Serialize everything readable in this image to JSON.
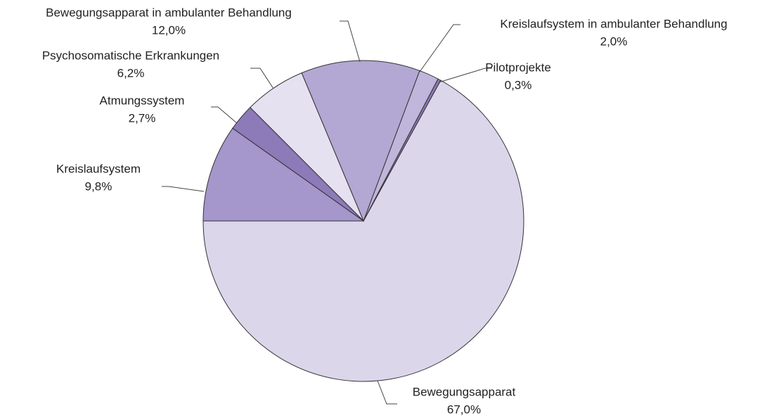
{
  "chart_data": {
    "type": "pie",
    "categories": [
      "Bewegungsapparat",
      "Pilotprojekte",
      "Kreislaufsystem in ambulanter Behandlung",
      "Bewegungsapparat in ambulanter Behandlung",
      "Psychosomatische Erkrankungen",
      "Atmungssystem",
      "Kreislaufsystem"
    ],
    "values": [
      67.0,
      0.3,
      2.0,
      12.0,
      6.2,
      2.7,
      9.8
    ],
    "value_labels": [
      "67,0%",
      "0,3%",
      "2,0%",
      "12,0%",
      "6,2%",
      "2,7%",
      "9,8%"
    ],
    "colors": [
      "#dcd6eb",
      "#8a78b5",
      "#c0b5da",
      "#b3a7d3",
      "#e5e1f0",
      "#8d7ab8",
      "#a596cb"
    ]
  }
}
